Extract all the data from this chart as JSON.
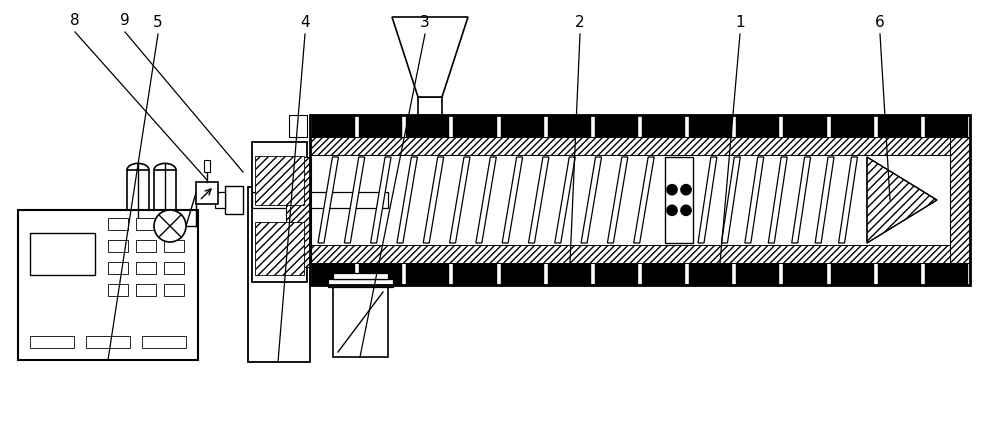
{
  "bg": "#ffffff",
  "black": "#000000",
  "figsize": [
    10.0,
    4.22
  ],
  "dpi": 100,
  "lfs": 11,
  "llw": 0.9
}
